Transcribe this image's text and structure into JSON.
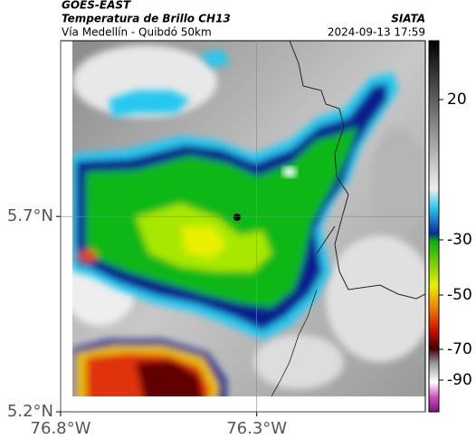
{
  "header": {
    "source": "GOES-EAST",
    "title": "Temperatura de Brillo CH13",
    "org": "SIATA",
    "subtitle": "Vía Medellín - Quibdó 50km",
    "timestamp": "2024-09-13 17:59"
  },
  "map": {
    "xlim": [
      -76.8,
      -75.87
    ],
    "ylim": [
      5.2,
      6.15
    ],
    "xticks": [
      {
        "value": -76.8,
        "label": "76.8°W"
      },
      {
        "value": -76.3,
        "label": "76.3°W"
      }
    ],
    "yticks": [
      {
        "value": 5.2,
        "label": "5.2°N"
      },
      {
        "value": 5.7,
        "label": "5.7°N"
      }
    ],
    "colorbar_ticks": [
      20,
      -30,
      -50,
      -70,
      -90
    ]
  }
}
